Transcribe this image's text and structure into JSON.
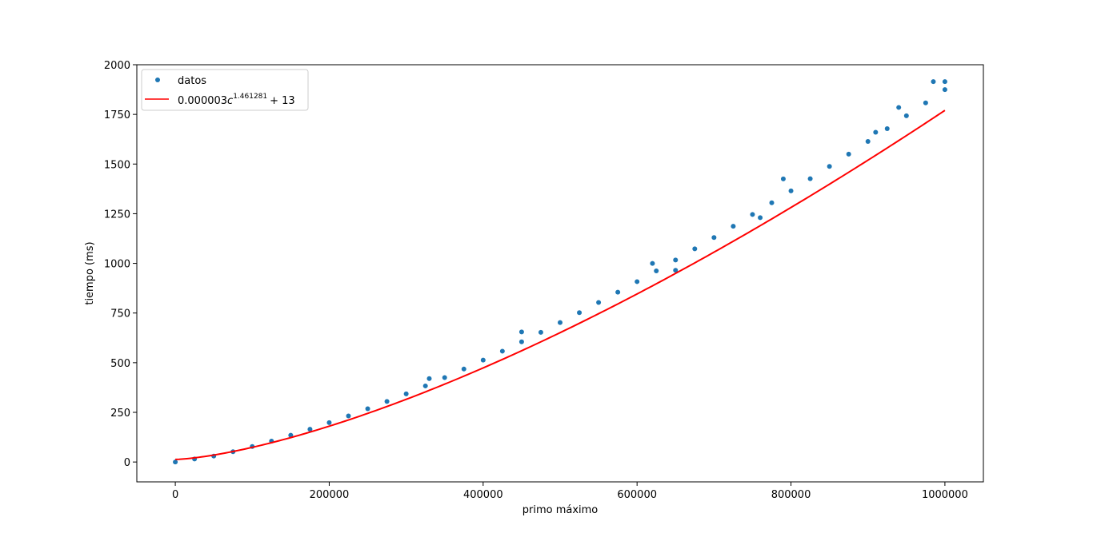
{
  "chart_data": {
    "type": "scatter",
    "title": "",
    "xlabel": "primo máximo",
    "ylabel": "tiempo (ms)",
    "xlim": [
      -50000,
      1050000
    ],
    "ylim": [
      -100,
      2000
    ],
    "x_ticks": [
      0,
      200000,
      400000,
      600000,
      800000,
      1000000
    ],
    "x_tick_labels": [
      "0",
      "200000",
      "400000",
      "600000",
      "800000",
      "1000000"
    ],
    "y_ticks": [
      0,
      250,
      500,
      750,
      1000,
      1250,
      1500,
      1750,
      2000
    ],
    "y_tick_labels": [
      "0",
      "250",
      "500",
      "750",
      "1000",
      "1250",
      "1500",
      "1750",
      "2000"
    ],
    "grid": false,
    "legend_position": "top-left",
    "series": [
      {
        "name": "datos",
        "kind": "scatter",
        "color": "#1f77b4",
        "points": [
          [
            0,
            0
          ],
          [
            25000,
            15
          ],
          [
            50000,
            30
          ],
          [
            75000,
            52
          ],
          [
            100000,
            78
          ],
          [
            125000,
            105
          ],
          [
            150000,
            135
          ],
          [
            175000,
            165
          ],
          [
            200000,
            198
          ],
          [
            225000,
            232
          ],
          [
            250000,
            268
          ],
          [
            275000,
            305
          ],
          [
            300000,
            343
          ],
          [
            325000,
            383
          ],
          [
            350000,
            425
          ],
          [
            375000,
            468
          ],
          [
            400000,
            513
          ],
          [
            425000,
            558
          ],
          [
            450000,
            605
          ],
          [
            475000,
            653
          ],
          [
            500000,
            702
          ],
          [
            525000,
            752
          ],
          [
            550000,
            803
          ],
          [
            575000,
            855
          ],
          [
            600000,
            908
          ],
          [
            625000,
            962
          ],
          [
            650000,
            1017
          ],
          [
            675000,
            1073
          ],
          [
            700000,
            1130
          ],
          [
            725000,
            1187
          ],
          [
            750000,
            1246
          ],
          [
            775000,
            1305
          ],
          [
            800000,
            1365
          ],
          [
            825000,
            1426
          ],
          [
            850000,
            1488
          ],
          [
            875000,
            1550
          ],
          [
            900000,
            1614
          ],
          [
            925000,
            1678
          ],
          [
            950000,
            1743
          ],
          [
            975000,
            1808
          ],
          [
            1000000,
            1875
          ],
          [
            330000,
            420
          ],
          [
            450000,
            655
          ],
          [
            620000,
            1000
          ],
          [
            650000,
            965
          ],
          [
            760000,
            1230
          ],
          [
            790000,
            1425
          ],
          [
            910000,
            1660
          ],
          [
            940000,
            1785
          ],
          [
            985000,
            1915
          ],
          [
            1000000,
            1915
          ]
        ]
      },
      {
        "name": "0.000003c^{1.461281} + 13",
        "label_base": "0.000003",
        "label_var": "c",
        "label_exp": "1.461281",
        "label_tail": "+ 13",
        "kind": "line",
        "color": "#ff0000",
        "formula": {
          "a": 3e-06,
          "b": 1.461281,
          "c": 13,
          "x_range": [
            0,
            1000000
          ]
        }
      }
    ]
  }
}
